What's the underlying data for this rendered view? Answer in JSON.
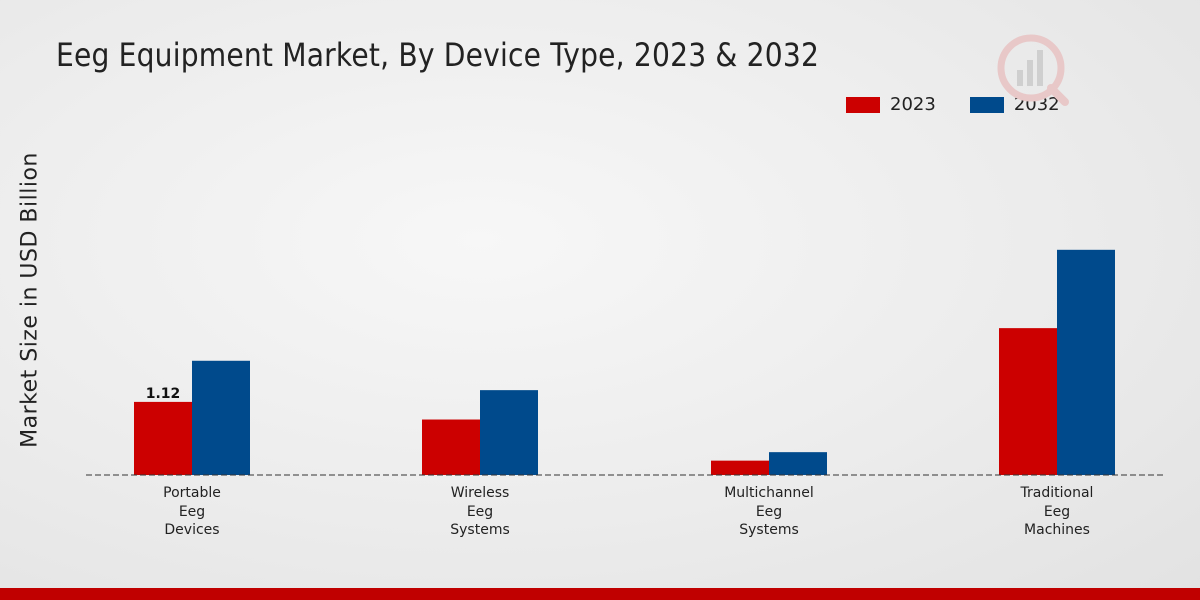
{
  "chart_data": {
    "type": "bar",
    "title": "Eeg Equipment Market, By Device Type, 2023 & 2032",
    "xlabel": "",
    "ylabel": "Market Size in USD Billion",
    "categories": [
      "Portable\nEeg\nDevices",
      "Wireless\nEeg\nSystems",
      "Multichannel\nEeg\nSystems",
      "Traditional\nEeg\nMachines"
    ],
    "series": [
      {
        "name": "2023",
        "color": "#cc0000",
        "values": [
          1.12,
          0.85,
          0.22,
          2.25
        ]
      },
      {
        "name": "2032",
        "color": "#004a8c",
        "values": [
          1.75,
          1.3,
          0.35,
          3.45
        ]
      }
    ],
    "data_labels": [
      {
        "series": 0,
        "index": 0,
        "text": "1.12"
      }
    ],
    "ylim": [
      0,
      5.5
    ],
    "grid": false,
    "legend_position": "top-right"
  },
  "colors": {
    "accent": "#cc0000",
    "footer": "#c00000"
  }
}
